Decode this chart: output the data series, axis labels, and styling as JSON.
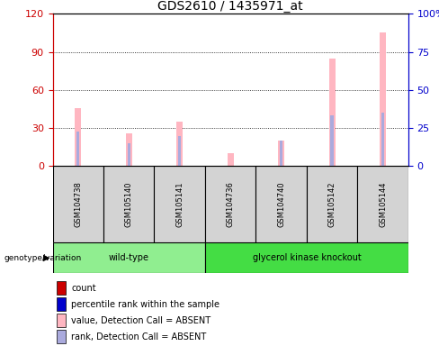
{
  "title": "GDS2610 / 1435971_at",
  "samples": [
    "GSM104738",
    "GSM105140",
    "GSM105141",
    "GSM104736",
    "GSM104740",
    "GSM105142",
    "GSM105144"
  ],
  "groups": {
    "wild-type": [
      0,
      1,
      2
    ],
    "glycerol kinase knockout": [
      3,
      4,
      5,
      6
    ]
  },
  "pink_bars": [
    46,
    26,
    35,
    10,
    20,
    85,
    105
  ],
  "blue_bars": [
    27,
    18,
    24,
    0,
    20,
    40,
    42
  ],
  "ylim_left": [
    0,
    120
  ],
  "ylim_right": [
    0,
    100
  ],
  "yticks_left": [
    0,
    30,
    60,
    90,
    120
  ],
  "yticks_right": [
    0,
    25,
    50,
    75,
    100
  ],
  "yticklabels_right": [
    "0",
    "25",
    "50",
    "75",
    "100%"
  ],
  "left_tick_color": "#cc0000",
  "right_tick_color": "#0000cc",
  "wild_type_color": "#90ee90",
  "knockout_color": "#44dd44",
  "pink_color": "#ffb6c1",
  "blue_color": "#aaaadd",
  "legend_items": [
    {
      "label": "count",
      "color": "#cc0000"
    },
    {
      "label": "percentile rank within the sample",
      "color": "#0000cc"
    },
    {
      "label": "value, Detection Call = ABSENT",
      "color": "#ffb6c1"
    },
    {
      "label": "rank, Detection Call = ABSENT",
      "color": "#aaaadd"
    }
  ],
  "bg_color": "#ffffff",
  "plot_bg_color": "#ffffff",
  "xlabel_group": "genotype/variation",
  "sample_box_color": "#d3d3d3",
  "pink_bar_width": 0.12,
  "blue_bar_width": 0.06
}
